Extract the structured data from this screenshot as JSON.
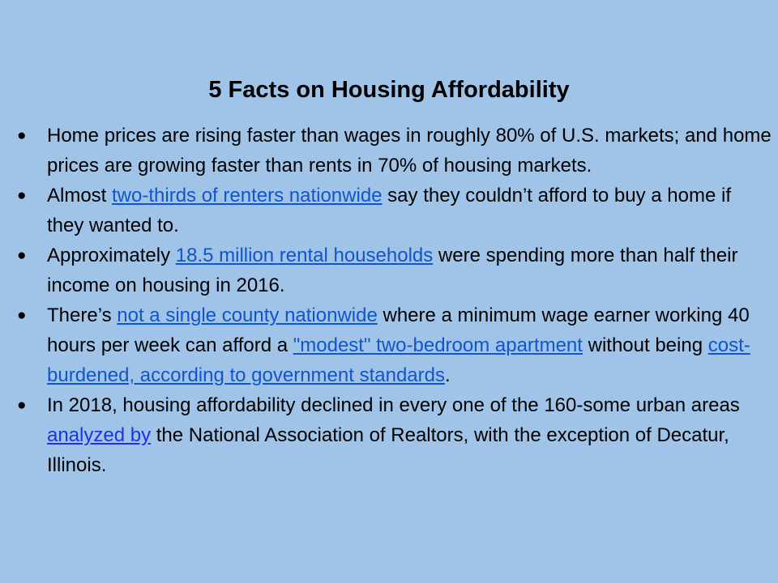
{
  "slide": {
    "title": "5 Facts on Housing Affordability",
    "bullet_glyph": "●",
    "colors": {
      "background": "#a0c4e8",
      "text": "#000000",
      "link": "#1155cc",
      "link_alt": "#1a33e6"
    },
    "facts": [
      {
        "text": "Home prices are rising faster than wages in roughly 80% of U.S. markets; and home prices are growing faster than rents in 70% of housing markets."
      },
      {
        "pre": "Almost ",
        "link": "two-thirds of renters nationwide",
        "post": " say they couldn’t afford to buy a home if they wanted to."
      },
      {
        "pre": "Approximately ",
        "link": "18.5 million rental households",
        "post": " were spending more than half their income on housing in 2016."
      },
      {
        "pre": "There’s ",
        "link1": "not a single county nationwide",
        "mid": " where a minimum wage earner working 40 hours per week can afford a ",
        "link2": "\"modest\" two-bedroom apartment",
        "mid2": " without being ",
        "link3": "cost-burdened, according to government standards",
        "post": "."
      },
      {
        "pre": "In 2018, housing affordability declined in every one of the 160-some urban areas ",
        "link": "analyzed by",
        "post": " the National Association of Realtors, with the exception of Decatur, Illinois."
      }
    ]
  }
}
